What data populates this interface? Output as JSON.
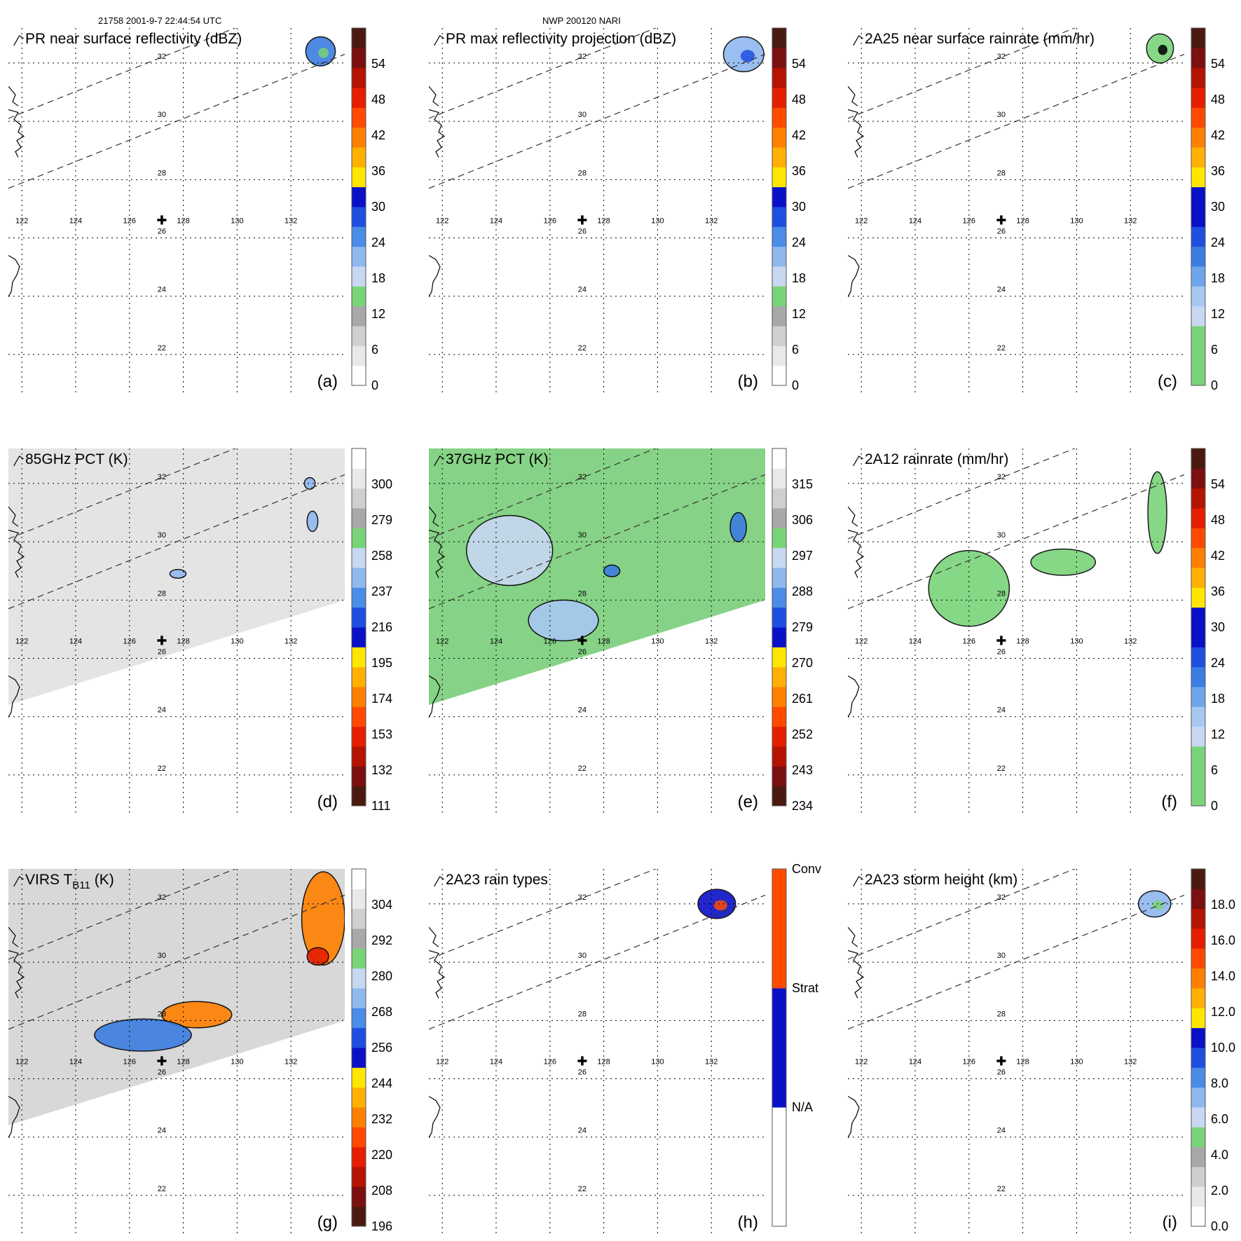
{
  "header": {
    "orbit_time": "21758 2001-9-7 22:44:54 UTC",
    "storm_id": "NWP 200120 NARI"
  },
  "map": {
    "lon_range": [
      121.5,
      134.0
    ],
    "lat_range": [
      20.7,
      33.2
    ],
    "lon_ticks": [
      "122",
      "124",
      "126",
      "128",
      "130",
      "132"
    ],
    "lat_ticks": [
      "22",
      "24",
      "26",
      "28",
      "30",
      "32"
    ],
    "center_marker": {
      "lon": 127.2,
      "lat": 26.6,
      "symbol": "✚"
    },
    "swath_edges": [
      {
        "from": [
          121.5,
          30.1
        ],
        "to": [
          134.0,
          34.7
        ]
      },
      {
        "from": [
          121.5,
          27.7
        ],
        "to": [
          134.0,
          32.3
        ]
      }
    ],
    "coast_color": "#000000"
  },
  "chart_data": {
    "type": "multi-panel map",
    "panels": [
      {
        "id": "a",
        "label": "(a)",
        "title": "PR near surface reflectivity (dBZ)",
        "colorbar": {
          "ticks": [
            "0",
            "6",
            "12",
            "18",
            "24",
            "30",
            "36",
            "42",
            "48",
            "54"
          ],
          "colors": [
            "#ffffff",
            "#e9e9e9",
            "#cfcfcf",
            "#a8a8a8",
            "#79d479",
            "#c8d8f2",
            "#8fb8ee",
            "#4a8ce6",
            "#1f4fe0",
            "#0a10c8",
            "#ffe600",
            "#ffb000",
            "#ff8000",
            "#ff4a00",
            "#e61e00",
            "#b41400",
            "#7a1010",
            "#4a1a10"
          ]
        },
        "background": "none",
        "features": [
          {
            "kind": "echo",
            "lon": 133.1,
            "lat": 32.4,
            "rx": 0.55,
            "ry": 0.5,
            "fill": "#3b7de0",
            "secondary": "#79d479"
          }
        ]
      },
      {
        "id": "b",
        "label": "(b)",
        "title": "PR max reflectivity projection (dBZ)",
        "colorbar": {
          "ticks": [
            "0",
            "6",
            "12",
            "18",
            "24",
            "30",
            "36",
            "42",
            "48",
            "54"
          ],
          "colors": [
            "#ffffff",
            "#e9e9e9",
            "#cfcfcf",
            "#a8a8a8",
            "#79d479",
            "#c8d8f2",
            "#8fb8ee",
            "#4a8ce6",
            "#1f4fe0",
            "#0a10c8",
            "#ffe600",
            "#ffb000",
            "#ff8000",
            "#ff4a00",
            "#e61e00",
            "#b41400",
            "#7a1010",
            "#4a1a10"
          ]
        },
        "background": "none",
        "features": [
          {
            "kind": "echo",
            "lon": 133.2,
            "lat": 32.3,
            "rx": 0.75,
            "ry": 0.6,
            "fill": "#8fb8ee",
            "secondary": "#1f4fe0"
          }
        ]
      },
      {
        "id": "c",
        "label": "(c)",
        "title": "2A25 near surface rainrate (mm/hr)",
        "colorbar": {
          "ticks": [
            "0",
            "6",
            "12",
            "18",
            "24",
            "30",
            "36",
            "42",
            "48",
            "54"
          ],
          "colors": [
            "#79d479",
            "#79d479",
            "#79d479",
            "#c8d8f2",
            "#a8c8f2",
            "#6fa6ea",
            "#3b7de0",
            "#1f4fe0",
            "#0a10c8",
            "#0a10c8",
            "#ffe600",
            "#ffb000",
            "#ff8000",
            "#ff4a00",
            "#e61e00",
            "#b41400",
            "#7a1010",
            "#4a1a10"
          ]
        },
        "background": "none",
        "features": [
          {
            "kind": "echo",
            "lon": 133.1,
            "lat": 32.5,
            "rx": 0.5,
            "ry": 0.5,
            "fill": "#79d479",
            "secondary": "#000000"
          }
        ]
      },
      {
        "id": "d",
        "label": "(d)",
        "title": "85GHz PCT (K)",
        "colorbar": {
          "ticks": [
            "111",
            "132",
            "153",
            "174",
            "195",
            "216",
            "237",
            "258",
            "279",
            "300"
          ],
          "colors": [
            "#4a1a10",
            "#7a1010",
            "#b41400",
            "#e61e00",
            "#ff4a00",
            "#ff8000",
            "#ffb000",
            "#ffe600",
            "#0a10c8",
            "#1f4fe0",
            "#4a8ce6",
            "#8fb8ee",
            "#c8d8f2",
            "#79d479",
            "#a8a8a8",
            "#cfcfcf",
            "#e9e9e9",
            "#ffffff"
          ]
        },
        "background": "#e3e3e3",
        "features": [
          {
            "kind": "cell",
            "lon": 127.8,
            "lat": 28.9,
            "rx": 0.3,
            "ry": 0.15,
            "fill": "#8fb8ee"
          },
          {
            "kind": "cell",
            "lon": 132.8,
            "lat": 30.7,
            "rx": 0.2,
            "ry": 0.35,
            "fill": "#8fb8ee"
          },
          {
            "kind": "cell",
            "lon": 132.7,
            "lat": 32.0,
            "rx": 0.2,
            "ry": 0.2,
            "fill": "#8fb8ee"
          }
        ]
      },
      {
        "id": "e",
        "label": "(e)",
        "title": "37GHz PCT (K)",
        "colorbar": {
          "ticks": [
            "234",
            "243",
            "252",
            "261",
            "270",
            "279",
            "288",
            "297",
            "306",
            "315"
          ],
          "colors": [
            "#4a1a10",
            "#7a1010",
            "#b41400",
            "#e61e00",
            "#ff4a00",
            "#ff8000",
            "#ffb000",
            "#ffe600",
            "#0a10c8",
            "#1f4fe0",
            "#4a8ce6",
            "#8fb8ee",
            "#c8d8f2",
            "#79d479",
            "#a8a8a8",
            "#cfcfcf",
            "#e9e9e9",
            "#ffffff"
          ]
        },
        "background": "#7fd07f",
        "features": [
          {
            "kind": "cell",
            "lon": 124.5,
            "lat": 29.7,
            "rx": 1.6,
            "ry": 1.2,
            "fill": "#c8d8f2"
          },
          {
            "kind": "cell",
            "lon": 126.5,
            "lat": 27.3,
            "rx": 1.3,
            "ry": 0.7,
            "fill": "#a8c8f2"
          },
          {
            "kind": "cell",
            "lon": 133.0,
            "lat": 30.5,
            "rx": 0.3,
            "ry": 0.5,
            "fill": "#3b7de0"
          },
          {
            "kind": "cell",
            "lon": 128.3,
            "lat": 29.0,
            "rx": 0.3,
            "ry": 0.2,
            "fill": "#3b7de0"
          }
        ]
      },
      {
        "id": "f",
        "label": "(f)",
        "title": "2A12 rainrate (mm/hr)",
        "colorbar": {
          "ticks": [
            "0",
            "6",
            "12",
            "18",
            "24",
            "30",
            "36",
            "42",
            "48",
            "54"
          ],
          "colors": [
            "#79d479",
            "#79d479",
            "#79d479",
            "#c8d8f2",
            "#a8c8f2",
            "#6fa6ea",
            "#3b7de0",
            "#1f4fe0",
            "#0a10c8",
            "#0a10c8",
            "#ffe600",
            "#ffb000",
            "#ff8000",
            "#ff4a00",
            "#e61e00",
            "#b41400",
            "#7a1010",
            "#4a1a10"
          ]
        },
        "background": "none",
        "features": [
          {
            "kind": "band",
            "lon": 126.0,
            "lat": 28.4,
            "rx": 1.5,
            "ry": 1.3,
            "fill": "#79d479"
          },
          {
            "kind": "band",
            "lon": 129.5,
            "lat": 29.3,
            "rx": 1.2,
            "ry": 0.45,
            "fill": "#79d479"
          },
          {
            "kind": "band",
            "lon": 133.0,
            "lat": 31.0,
            "rx": 0.35,
            "ry": 1.4,
            "fill": "#79d479"
          }
        ]
      },
      {
        "id": "g",
        "label": "(g)",
        "title_main": "VIRS T",
        "title_sub": "B11",
        "title_unit": " (K)",
        "colorbar": {
          "ticks": [
            "196",
            "208",
            "220",
            "232",
            "244",
            "256",
            "268",
            "280",
            "292",
            "304"
          ],
          "colors": [
            "#4a1a10",
            "#7a1010",
            "#b41400",
            "#e61e00",
            "#ff4a00",
            "#ff8000",
            "#ffb000",
            "#ffe600",
            "#0a10c8",
            "#1f4fe0",
            "#4a8ce6",
            "#8fb8ee",
            "#c8d8f2",
            "#79d479",
            "#a8a8a8",
            "#cfcfcf",
            "#e9e9e9",
            "#ffffff"
          ]
        },
        "background": "#d6d6d6",
        "features": [
          {
            "kind": "cell",
            "lon": 128.5,
            "lat": 28.2,
            "rx": 1.3,
            "ry": 0.45,
            "fill": "#ff8000"
          },
          {
            "kind": "cell",
            "lon": 126.5,
            "lat": 27.5,
            "rx": 1.8,
            "ry": 0.55,
            "fill": "#3b7de0"
          },
          {
            "kind": "cell",
            "lon": 133.2,
            "lat": 31.5,
            "rx": 0.8,
            "ry": 1.6,
            "fill": "#ff8000"
          },
          {
            "kind": "cell",
            "lon": 133.0,
            "lat": 30.2,
            "rx": 0.4,
            "ry": 0.3,
            "fill": "#e61e00"
          }
        ]
      },
      {
        "id": "h",
        "label": "(h)",
        "title": "2A23 rain types",
        "colorbar": {
          "ticks": [
            "N/A",
            "Strat",
            "Conv"
          ],
          "colors": [
            "#ffffff",
            "#0a10c8",
            "#ff4a00"
          ]
        },
        "background": "none",
        "features": [
          {
            "kind": "echo",
            "lon": 132.2,
            "lat": 32.0,
            "rx": 0.7,
            "ry": 0.5,
            "fill": "#0a10c8",
            "secondary": "#ff4a00"
          }
        ]
      },
      {
        "id": "i",
        "label": "(i)",
        "title": "2A23 storm height (km)",
        "colorbar": {
          "ticks": [
            "0.0",
            "2.0",
            "4.0",
            "6.0",
            "8.0",
            "10.0",
            "12.0",
            "14.0",
            "16.0",
            "18.0"
          ],
          "colors": [
            "#ffffff",
            "#e9e9e9",
            "#cfcfcf",
            "#a8a8a8",
            "#79d479",
            "#c8d8f2",
            "#8fb8ee",
            "#4a8ce6",
            "#1f4fe0",
            "#0a10c8",
            "#ffe600",
            "#ffb000",
            "#ff8000",
            "#ff4a00",
            "#e61e00",
            "#b41400",
            "#7a1010",
            "#4a1a10"
          ]
        },
        "background": "none",
        "features": [
          {
            "kind": "echo",
            "lon": 132.9,
            "lat": 32.0,
            "rx": 0.6,
            "ry": 0.45,
            "fill": "#8fb8ee",
            "secondary": "#79d479"
          }
        ]
      }
    ]
  }
}
